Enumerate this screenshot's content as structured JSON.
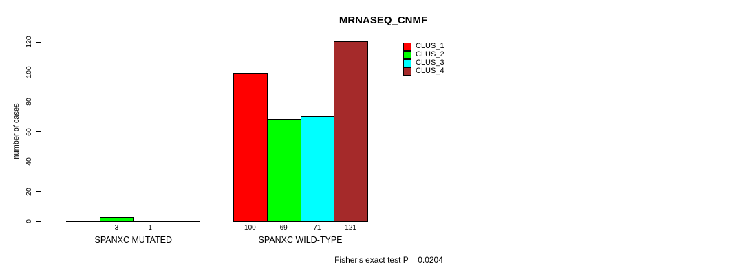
{
  "chart_data": {
    "type": "bar",
    "title": "MRNASEQ_CNMF",
    "xlabel": "",
    "ylabel": "number of cases",
    "categories": [
      "SPANXC MUTATED",
      "SPANXC WILD-TYPE"
    ],
    "series": [
      {
        "name": "CLUS_1",
        "color": "#FF0000",
        "values": [
          0,
          100
        ]
      },
      {
        "name": "CLUS_2",
        "color": "#00FF00",
        "values": [
          3,
          69
        ]
      },
      {
        "name": "CLUS_3",
        "color": "#00FFFF",
        "values": [
          1,
          71
        ]
      },
      {
        "name": "CLUS_4",
        "color": "#A52A2A",
        "values": [
          0,
          121
        ]
      }
    ],
    "bar_value_labels": [
      [
        "",
        "3",
        "1",
        ""
      ],
      [
        "100",
        "69",
        "71",
        "121"
      ]
    ],
    "yticks": [
      0,
      20,
      40,
      60,
      80,
      100,
      120
    ],
    "ylim": [
      0,
      120
    ],
    "grid": false,
    "legend_position": "top-right-inside",
    "annotation": "Fisher's exact test P = 0.0204",
    "background_color": "#FFFFFF",
    "axis_color": "#000000"
  }
}
